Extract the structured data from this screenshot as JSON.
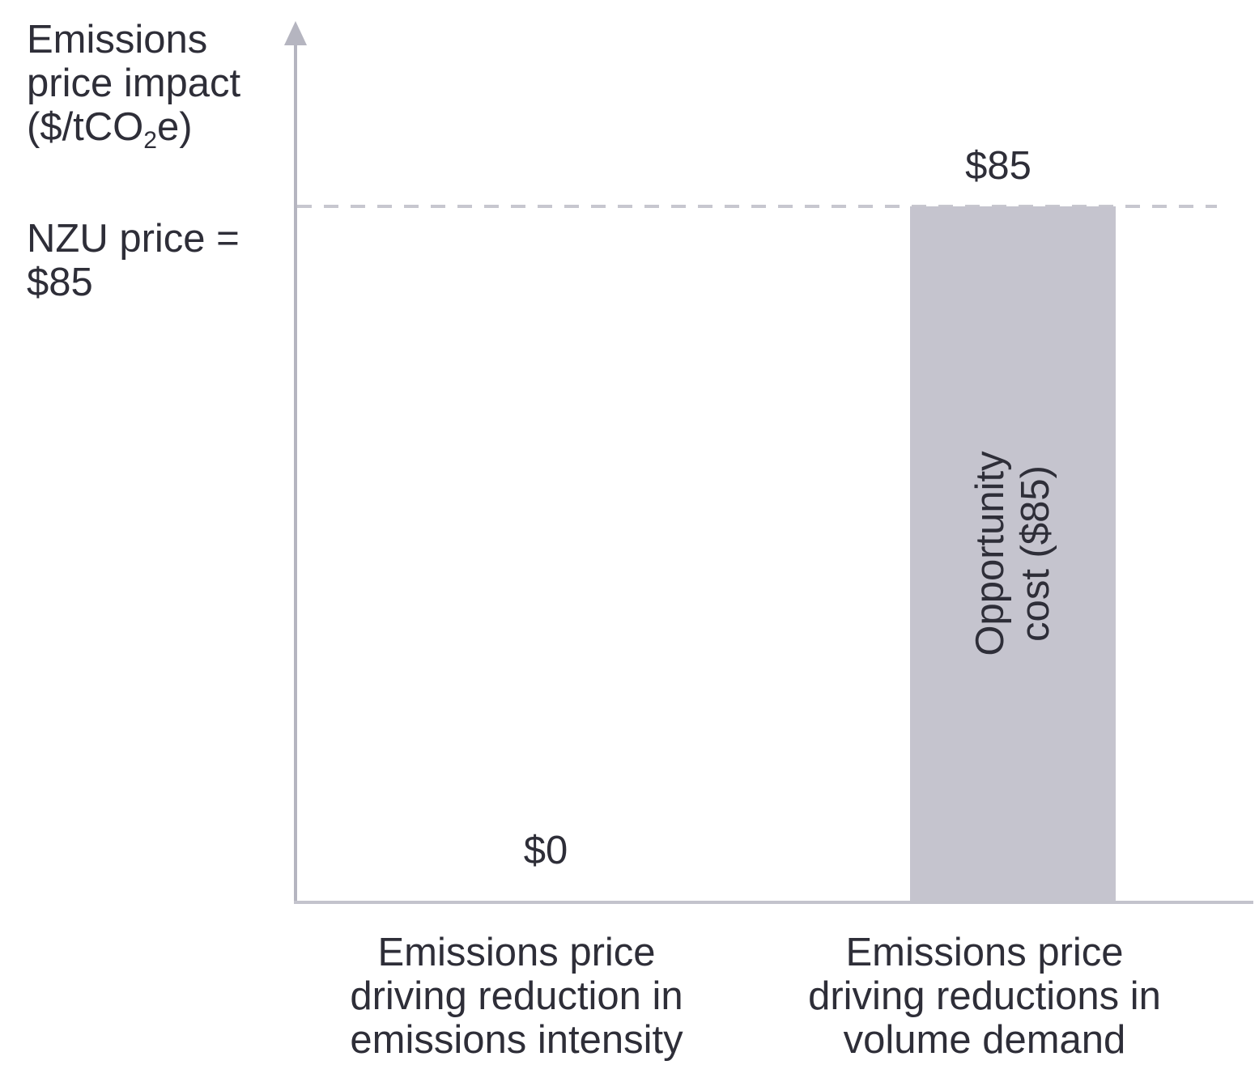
{
  "colors": {
    "text": "#2e2e38",
    "axis": "#b5b5c0",
    "baseline": "#c3c3cc",
    "dashed_line": "#c7c7cf",
    "bar_fill": "#c5c4ce",
    "background": "#ffffff"
  },
  "axis_title": {
    "lines": [
      "Emissions",
      "price impact"
    ],
    "unit_prefix": "($/tCO",
    "unit_sub": "2",
    "unit_suffix": "e)"
  },
  "reference": {
    "lines": [
      "NZU price =",
      "$85"
    ]
  },
  "bars": {
    "left": {
      "value_label": "$0",
      "category_lines": [
        "Emissions price",
        "driving reduction in",
        "emissions intensity"
      ]
    },
    "right": {
      "value_label": "$85",
      "category_lines": [
        "Emissions price",
        "driving reductions in",
        "volume demand"
      ],
      "inner_label_lines": [
        "Opportunity",
        "cost ($85)"
      ]
    }
  },
  "chart_data": {
    "type": "bar",
    "title": "",
    "ylabel": "Emissions price impact ($/tCO2e)",
    "xlabel": "",
    "categories": [
      "Emissions price driving reduction in emissions intensity",
      "Emissions price driving reductions in volume demand"
    ],
    "values": [
      0,
      85
    ],
    "value_labels": [
      "$0",
      "$85"
    ],
    "bar_annotations": [
      null,
      "Opportunity cost ($85)"
    ],
    "reference_line": {
      "label": "NZU price = $85",
      "value": 85,
      "style": "dashed"
    },
    "ylim": [
      0,
      100
    ],
    "grid": false,
    "legend": false,
    "axis_arrow": true
  }
}
